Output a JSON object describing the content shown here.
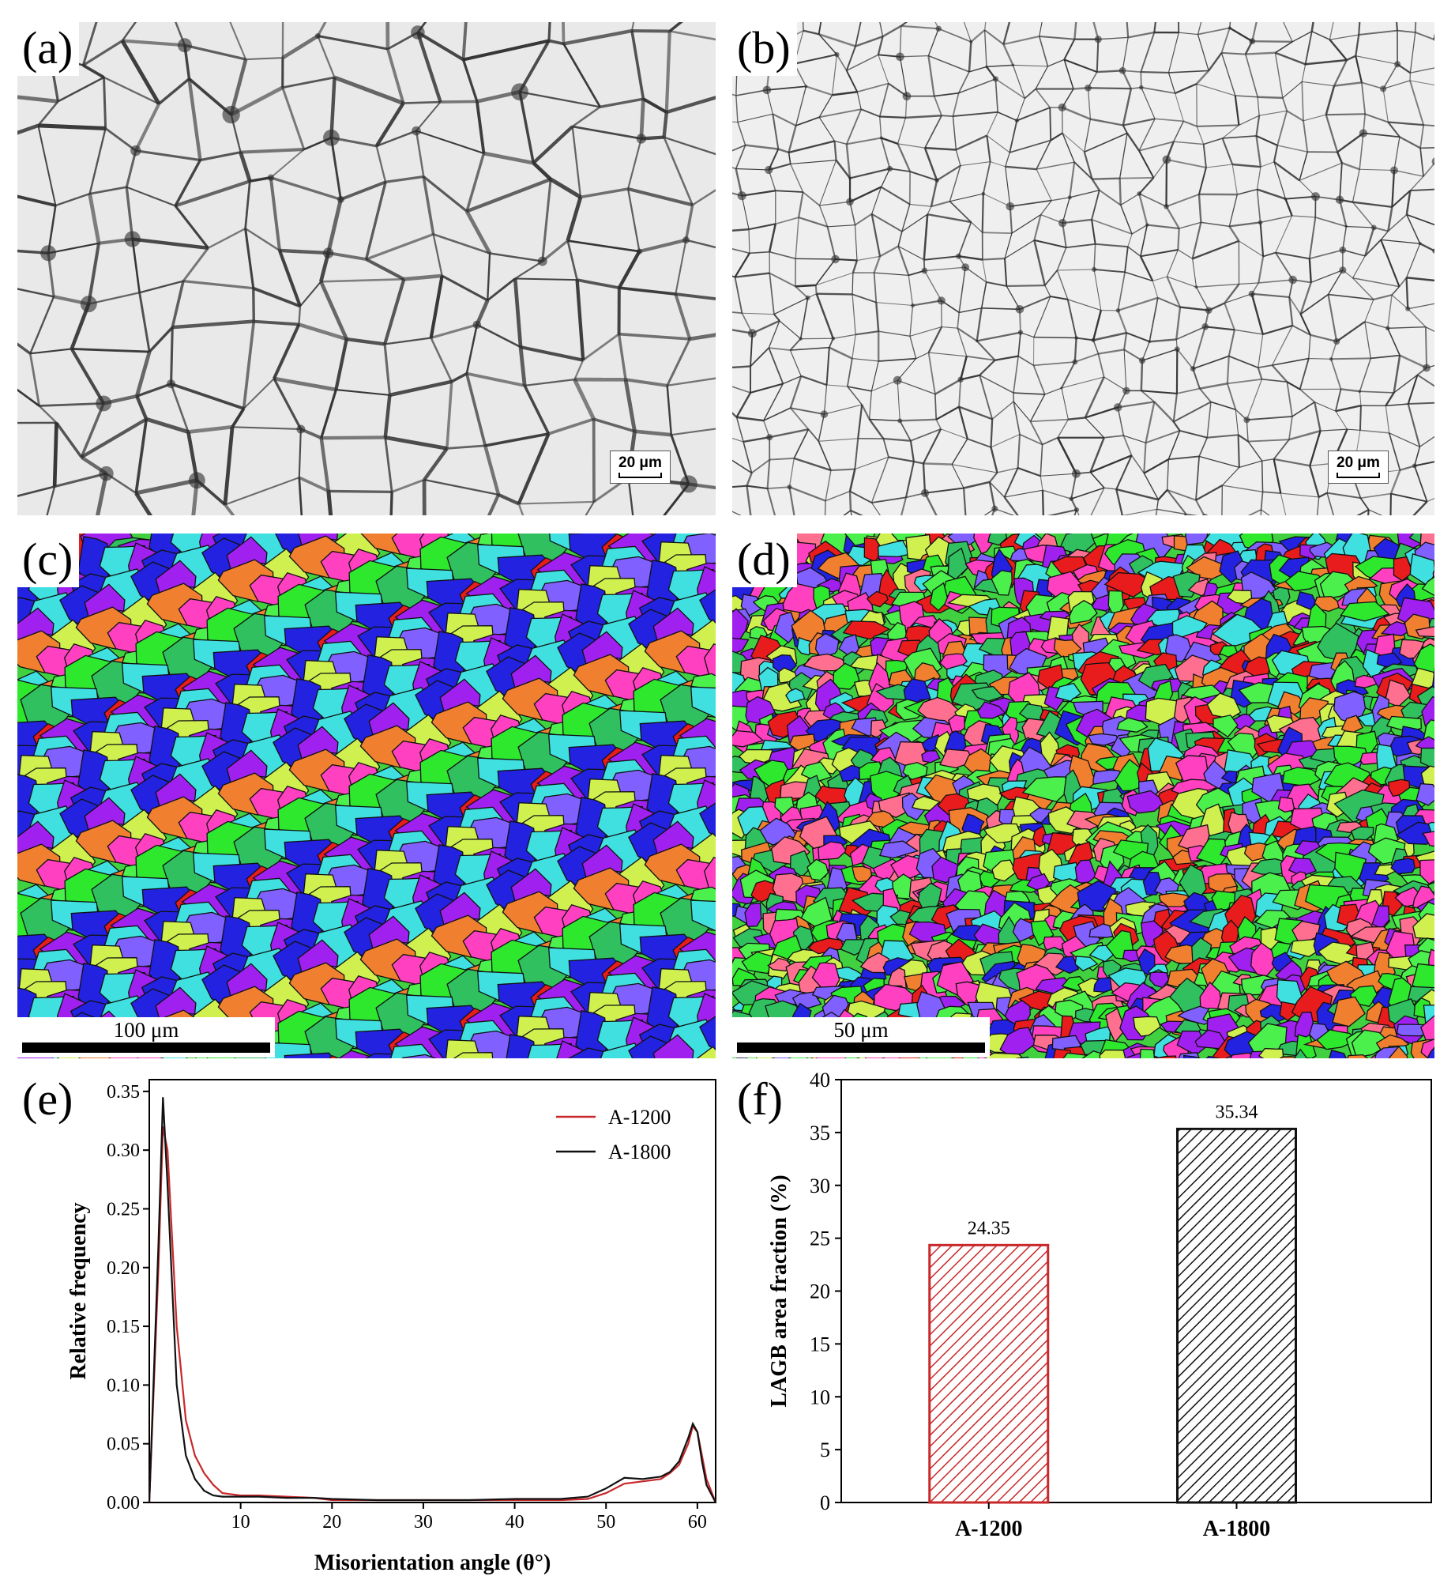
{
  "panels": {
    "a": {
      "label": "(a)",
      "scale": "20 μm"
    },
    "b": {
      "label": "(b)",
      "scale": "20 μm"
    },
    "c": {
      "label": "(c)",
      "scale": "100 μm"
    },
    "d": {
      "label": "(d)",
      "scale": "50 μm"
    },
    "e": {
      "label": "(e)"
    },
    "f": {
      "label": "(f)"
    }
  },
  "colors": {
    "a1200": "#c8282a",
    "a1800": "#111111",
    "micrograph_bg": "#e9e9e9",
    "grain_boundary": "#2b2b2b"
  },
  "chart_data": [
    {
      "type": "line",
      "panel": "e",
      "xlabel": "Misorientation angle (θ°)",
      "ylabel": "Relative frequency",
      "xlim": [
        0,
        62
      ],
      "ylim": [
        0,
        0.36
      ],
      "xticks": [
        10,
        20,
        30,
        40,
        50,
        60
      ],
      "yticks": [
        0.0,
        0.05,
        0.1,
        0.15,
        0.2,
        0.25,
        0.3,
        0.35
      ],
      "legend_position": "top-right",
      "series": [
        {
          "name": "A-1200",
          "color": "#c8282a",
          "x": [
            0,
            1,
            1.5,
            2,
            3,
            4,
            5,
            6,
            7,
            8,
            10,
            12,
            15,
            18,
            20,
            25,
            30,
            35,
            40,
            45,
            48,
            50,
            52,
            54,
            56,
            57,
            58,
            59,
            59.5,
            60,
            60.5,
            61,
            62
          ],
          "y": [
            0.0,
            0.2,
            0.32,
            0.3,
            0.15,
            0.07,
            0.04,
            0.025,
            0.015,
            0.008,
            0.006,
            0.006,
            0.005,
            0.004,
            0.002,
            0.002,
            0.002,
            0.002,
            0.002,
            0.002,
            0.003,
            0.008,
            0.016,
            0.018,
            0.02,
            0.025,
            0.032,
            0.05,
            0.065,
            0.06,
            0.04,
            0.02,
            0.0
          ]
        },
        {
          "name": "A-1800",
          "color": "#111111",
          "x": [
            0,
            1,
            1.5,
            2,
            3,
            4,
            5,
            6,
            7,
            8,
            10,
            12,
            15,
            18,
            20,
            25,
            30,
            35,
            40,
            45,
            48,
            50,
            52,
            54,
            56,
            57,
            58,
            59,
            59.5,
            60,
            60.5,
            61,
            62
          ],
          "y": [
            0.0,
            0.22,
            0.345,
            0.27,
            0.1,
            0.04,
            0.02,
            0.01,
            0.006,
            0.005,
            0.005,
            0.005,
            0.004,
            0.004,
            0.003,
            0.002,
            0.002,
            0.002,
            0.003,
            0.003,
            0.005,
            0.012,
            0.021,
            0.02,
            0.022,
            0.026,
            0.035,
            0.055,
            0.067,
            0.06,
            0.035,
            0.015,
            0.0
          ]
        }
      ]
    },
    {
      "type": "bar",
      "panel": "f",
      "categories": [
        "A-1200",
        "A-1800"
      ],
      "values": [
        24.35,
        35.34
      ],
      "data_labels": [
        "24.35",
        "35.34"
      ],
      "ylabel": "LAGB area fraction (%)",
      "ylim": [
        0,
        40
      ],
      "yticks": [
        0,
        5,
        10,
        15,
        20,
        25,
        30,
        35,
        40
      ],
      "colors": [
        "#c8282a",
        "#111111"
      ],
      "hatch": "diagonal"
    }
  ]
}
